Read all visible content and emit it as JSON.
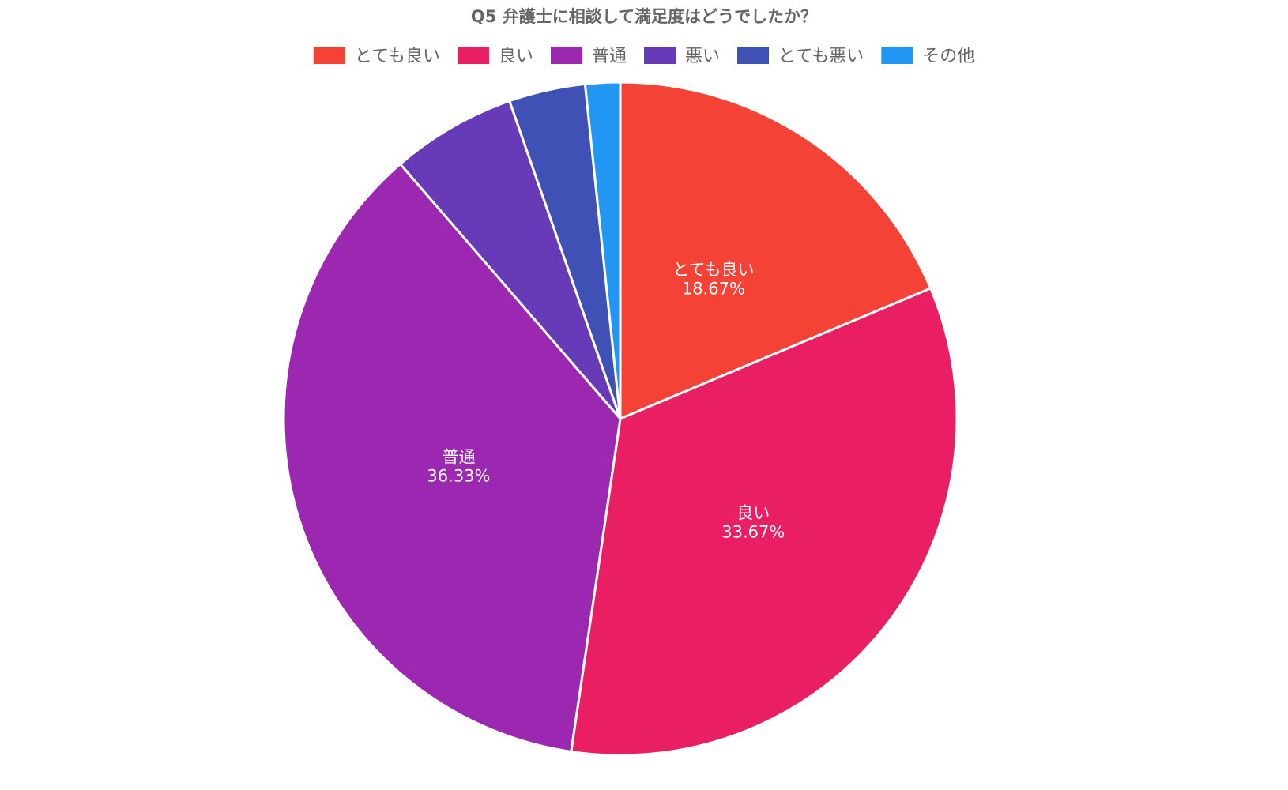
{
  "chart_data": {
    "type": "pie",
    "title": "Q5 弁護士に相談して満足度はどうでしたか？",
    "legend_position": "top",
    "start_angle": "top",
    "direction": "clockwise",
    "categories": [
      "とても良い",
      "良い",
      "普通",
      "悪い",
      "とても悪い",
      "その他"
    ],
    "values": [
      18.67,
      33.67,
      36.33,
      6.0,
      3.67,
      1.67
    ],
    "value_labels": [
      "18.67%",
      "33.67%",
      "36.33%",
      "",
      "",
      ""
    ],
    "colors": [
      "#f44336",
      "#e91e63",
      "#9c27b0",
      "#673ab7",
      "#3f51b5",
      "#2196f3"
    ]
  }
}
